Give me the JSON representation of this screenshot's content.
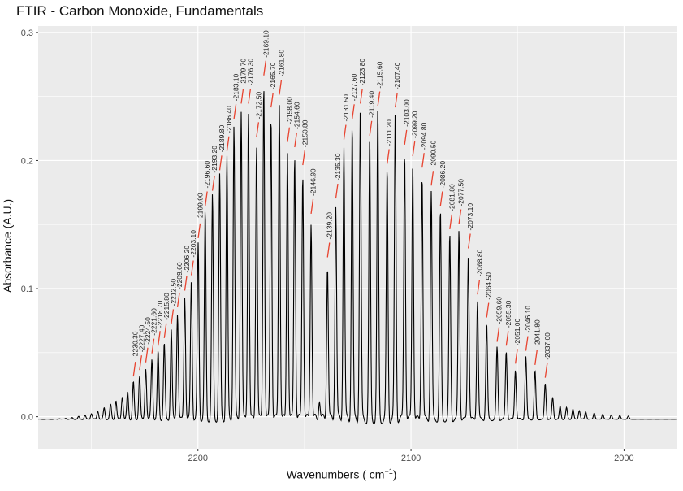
{
  "chart_data": {
    "type": "line",
    "title": "FTIR - Carbon Monoxide, Fundamentals",
    "xlabel": "Wavenumbers ( cm",
    "xlabel_sup": "−1",
    "xlabel_end": ")",
    "ylabel": "Absorbance (A.U.)",
    "xlim": [
      2275,
      1975
    ],
    "ylim": [
      -0.025,
      0.305
    ],
    "x_reversed": true,
    "x_ticks": [
      2200,
      2100,
      2000
    ],
    "y_ticks": [
      0.0,
      0.1,
      0.2,
      0.3
    ],
    "y_tick_labels": [
      "0.0",
      "0.1",
      "0.2",
      "0.3"
    ],
    "grid": true,
    "colors": {
      "panel": "#ebebeb",
      "grid": "#ffffff",
      "line": "#000000",
      "marker": "#e8432f"
    },
    "peaks": [
      {
        "x": 2230.3,
        "y": 0.027,
        "label": "2230.30"
      },
      {
        "x": 2227.4,
        "y": 0.032,
        "label": "2227.40"
      },
      {
        "x": 2224.5,
        "y": 0.038,
        "label": "2224.50"
      },
      {
        "x": 2221.6,
        "y": 0.045,
        "label": "2221.60"
      },
      {
        "x": 2218.7,
        "y": 0.051,
        "label": "2218.70"
      },
      {
        "x": 2215.8,
        "y": 0.057,
        "label": "2215.80"
      },
      {
        "x": 2212.5,
        "y": 0.068,
        "label": "2212.50"
      },
      {
        "x": 2209.6,
        "y": 0.081,
        "label": "2209.60"
      },
      {
        "x": 2206.2,
        "y": 0.094,
        "label": "2206.20"
      },
      {
        "x": 2203.1,
        "y": 0.106,
        "label": "2203.10"
      },
      {
        "x": 2199.9,
        "y": 0.135,
        "label": "2199.90"
      },
      {
        "x": 2196.6,
        "y": 0.16,
        "label": "2196.60"
      },
      {
        "x": 2193.2,
        "y": 0.172,
        "label": "2193.20"
      },
      {
        "x": 2189.8,
        "y": 0.188,
        "label": "2189.80"
      },
      {
        "x": 2186.4,
        "y": 0.203,
        "label": "2186.40"
      },
      {
        "x": 2183.1,
        "y": 0.228,
        "label": "2183.10"
      },
      {
        "x": 2179.7,
        "y": 0.24,
        "label": "2179.70"
      },
      {
        "x": 2176.3,
        "y": 0.24,
        "label": "2176.30"
      },
      {
        "x": 2172.5,
        "y": 0.214,
        "label": "2172.50"
      },
      {
        "x": 2169.1,
        "y": 0.262,
        "label": "2169.10"
      },
      {
        "x": 2165.7,
        "y": 0.237,
        "label": "2165.70"
      },
      {
        "x": 2161.8,
        "y": 0.247,
        "label": "2161.80"
      },
      {
        "x": 2158.0,
        "y": 0.21,
        "label": "2158.00"
      },
      {
        "x": 2154.6,
        "y": 0.206,
        "label": "2154.60"
      },
      {
        "x": 2150.8,
        "y": 0.192,
        "label": "2150.80"
      },
      {
        "x": 2146.9,
        "y": 0.154,
        "label": "2146.90"
      },
      {
        "x": 2139.2,
        "y": 0.12,
        "label": "2139.20"
      },
      {
        "x": 2135.3,
        "y": 0.166,
        "label": "2135.30"
      },
      {
        "x": 2131.5,
        "y": 0.212,
        "label": "2131.50"
      },
      {
        "x": 2127.6,
        "y": 0.228,
        "label": "2127.60"
      },
      {
        "x": 2123.8,
        "y": 0.24,
        "label": "2123.80"
      },
      {
        "x": 2119.4,
        "y": 0.215,
        "label": "2119.40"
      },
      {
        "x": 2115.6,
        "y": 0.238,
        "label": "2115.60"
      },
      {
        "x": 2111.2,
        "y": 0.193,
        "label": "2111.20"
      },
      {
        "x": 2107.4,
        "y": 0.237,
        "label": "2107.40"
      },
      {
        "x": 2103.0,
        "y": 0.208,
        "label": "2103.00"
      },
      {
        "x": 2099.2,
        "y": 0.199,
        "label": "2099.20"
      },
      {
        "x": 2094.8,
        "y": 0.19,
        "label": "2094.80"
      },
      {
        "x": 2090.5,
        "y": 0.176,
        "label": "2090.50"
      },
      {
        "x": 2086.2,
        "y": 0.16,
        "label": "2086.20"
      },
      {
        "x": 2081.8,
        "y": 0.142,
        "label": "2081.80"
      },
      {
        "x": 2077.5,
        "y": 0.146,
        "label": "2077.50"
      },
      {
        "x": 2073.1,
        "y": 0.127,
        "label": "2073.10"
      },
      {
        "x": 2068.8,
        "y": 0.091,
        "label": "2068.80"
      },
      {
        "x": 2064.5,
        "y": 0.073,
        "label": "2064.50"
      },
      {
        "x": 2059.6,
        "y": 0.054,
        "label": "2059.60"
      },
      {
        "x": 2055.3,
        "y": 0.051,
        "label": "2055.30"
      },
      {
        "x": 2051.0,
        "y": 0.037,
        "label": "2051.00"
      },
      {
        "x": 2046.1,
        "y": 0.047,
        "label": "2046.10"
      },
      {
        "x": 2041.8,
        "y": 0.036,
        "label": "2041.80"
      },
      {
        "x": 2037.0,
        "y": 0.026,
        "label": "2037.00"
      }
    ],
    "minor_peaks": [
      {
        "x": 2265.0,
        "y": -0.0015
      },
      {
        "x": 2262.0,
        "y": -0.0012
      },
      {
        "x": 2259.0,
        "y": -0.0008
      },
      {
        "x": 2256.0,
        "y": 0.0
      },
      {
        "x": 2253.0,
        "y": 0.001
      },
      {
        "x": 2250.0,
        "y": 0.0025
      },
      {
        "x": 2247.0,
        "y": 0.0045
      },
      {
        "x": 2244.0,
        "y": 0.007
      },
      {
        "x": 2241.0,
        "y": 0.0095
      },
      {
        "x": 2238.5,
        "y": 0.0125
      },
      {
        "x": 2235.5,
        "y": 0.016
      },
      {
        "x": 2233.0,
        "y": 0.0195
      },
      {
        "x": 2143.0,
        "y": 0.015
      },
      {
        "x": 2033.5,
        "y": 0.015
      },
      {
        "x": 2030.0,
        "y": 0.008
      },
      {
        "x": 2027.0,
        "y": 0.007
      },
      {
        "x": 2024.0,
        "y": 0.006
      },
      {
        "x": 2021.0,
        "y": 0.005
      },
      {
        "x": 2018.0,
        "y": 0.004
      },
      {
        "x": 2014.0,
        "y": 0.003
      },
      {
        "x": 2010.0,
        "y": 0.002
      },
      {
        "x": 2006.0,
        "y": 0.0015
      },
      {
        "x": 2002.0,
        "y": 0.001
      },
      {
        "x": 1998.0,
        "y": 0.0005
      }
    ],
    "baseline": -0.002
  }
}
